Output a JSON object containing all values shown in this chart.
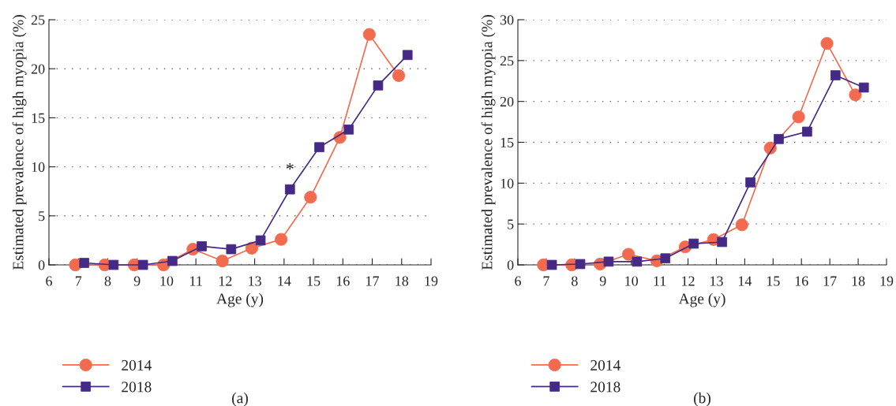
{
  "chart_data": [
    {
      "type": "line",
      "xlabel": "Age (y)",
      "ylabel": "Estimated prevalence of high myopia (%)",
      "xlim": [
        6,
        19
      ],
      "xticks": [
        6,
        7,
        8,
        9,
        10,
        11,
        12,
        13,
        14,
        15,
        16,
        17,
        18,
        19
      ],
      "ylim": [
        0,
        25
      ],
      "yticks": [
        0,
        5,
        10,
        15,
        20,
        25
      ],
      "grid": "y",
      "legend": "bottom left",
      "annotations": [
        {
          "text": "*",
          "x": 14.2,
          "y": 7.7
        },
        "(a)"
      ],
      "series": [
        {
          "name": "2014",
          "color": "#f26b4f",
          "marker": "circle",
          "x": [
            6.9,
            7.9,
            8.9,
            9.9,
            10.9,
            11.9,
            12.9,
            13.9,
            14.9,
            15.9,
            16.9,
            17.9
          ],
          "values": [
            0,
            0,
            0,
            0,
            1.6,
            0.4,
            1.7,
            2.6,
            6.9,
            13.0,
            23.5,
            19.3
          ]
        },
        {
          "name": "2018",
          "color": "#452a85",
          "marker": "square",
          "x": [
            7.2,
            8.2,
            9.2,
            10.2,
            11.2,
            12.2,
            13.2,
            14.2,
            15.2,
            16.2,
            17.2,
            18.2
          ],
          "values": [
            0.2,
            0,
            0,
            0.4,
            1.9,
            1.6,
            2.5,
            7.7,
            12.0,
            13.8,
            18.3,
            21.4
          ]
        }
      ]
    },
    {
      "type": "line",
      "xlabel": "Age (y)",
      "ylabel": "Estimated prevalence of high myopia (%)",
      "xlim": [
        6,
        19
      ],
      "xticks": [
        6,
        7,
        8,
        9,
        10,
        11,
        12,
        13,
        14,
        15,
        16,
        17,
        18,
        19
      ],
      "ylim": [
        0,
        30
      ],
      "yticks": [
        0,
        5,
        10,
        15,
        20,
        25,
        30
      ],
      "grid": "y",
      "legend": "bottom left",
      "annotations": [
        "(b)"
      ],
      "series": [
        {
          "name": "2014",
          "color": "#f26b4f",
          "marker": "circle",
          "x": [
            6.9,
            7.9,
            8.9,
            9.9,
            10.9,
            11.9,
            12.9,
            13.9,
            14.9,
            15.9,
            16.9,
            17.9
          ],
          "values": [
            0,
            0,
            0.1,
            1.3,
            0.5,
            2.2,
            3.1,
            4.9,
            14.3,
            18.1,
            27.1,
            20.8
          ]
        },
        {
          "name": "2018",
          "color": "#452a85",
          "marker": "square",
          "x": [
            7.2,
            8.2,
            9.2,
            10.2,
            11.2,
            12.2,
            13.2,
            14.2,
            15.2,
            16.2,
            17.2,
            18.2
          ],
          "values": [
            0,
            0.1,
            0.4,
            0.4,
            0.8,
            2.6,
            2.8,
            10.1,
            15.4,
            16.3,
            23.2,
            21.7
          ]
        }
      ]
    }
  ]
}
